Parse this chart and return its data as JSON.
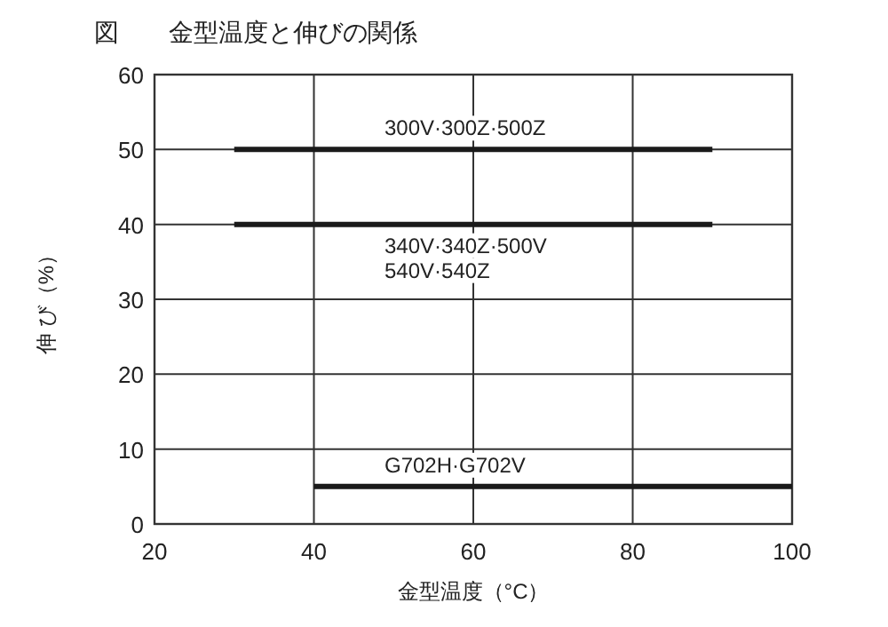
{
  "chart_data": {
    "type": "line",
    "title": "図　　金型温度と伸びの関係",
    "xlabel": "金型温度（°C）",
    "ylabel": "伸 び（%）",
    "xlim": [
      20,
      100
    ],
    "xticks": [
      20,
      40,
      60,
      80,
      100
    ],
    "ylim": [
      0,
      60
    ],
    "yticks": [
      0,
      10,
      20,
      30,
      40,
      50,
      60
    ],
    "grid": true,
    "legend": false,
    "marker": "none",
    "line_style": "solid",
    "series": [
      {
        "name": "300V·300Z·500Z",
        "color": "#1a1a1a",
        "x": [
          30,
          90
        ],
        "values": [
          50,
          50
        ]
      },
      {
        "name": "340V·340Z·500V 540V·540Z",
        "color": "#1a1a1a",
        "x": [
          30,
          90
        ],
        "values": [
          40,
          40
        ]
      },
      {
        "name": "G702H·G702V",
        "color": "#1a1a1a",
        "x": [
          40,
          100
        ],
        "values": [
          5,
          5
        ]
      }
    ]
  }
}
